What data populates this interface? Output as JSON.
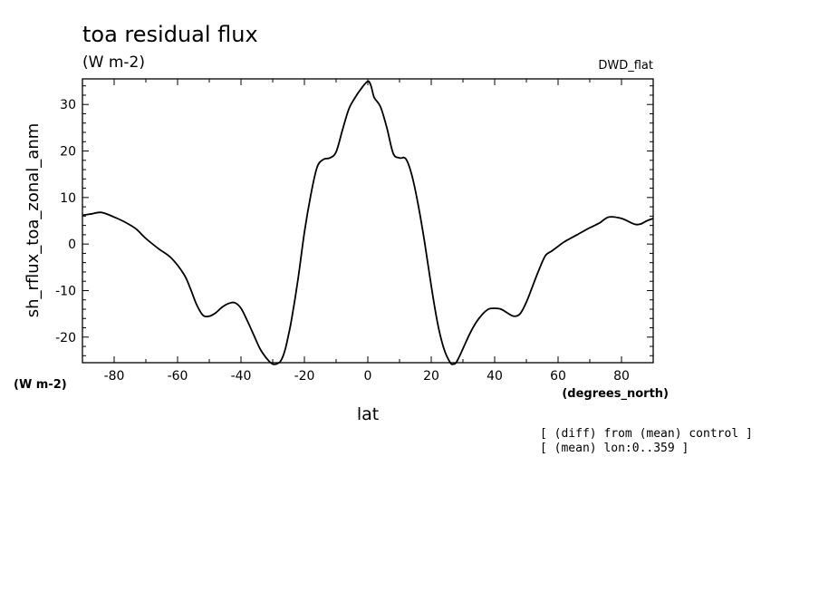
{
  "chart_data": {
    "type": "line",
    "title": "toa residual flux",
    "title_units": "(W m-2)",
    "dataset": "DWD_flat",
    "xlabel": "lat",
    "xunits": "(degrees_north)",
    "ylabel": "sh_rflux_toa_zonal_anm",
    "yunits": "(W m-2)",
    "xlim": [
      -90,
      90
    ],
    "ylim": [
      -25.5,
      35.5
    ],
    "xticks": [
      "-80",
      "-60",
      "-40",
      "-20",
      "0",
      "20",
      "40",
      "60",
      "80"
    ],
    "yticks": [
      "-20",
      "-10",
      "0",
      "10",
      "20",
      "30"
    ],
    "notes": [
      "[ (diff) from (mean) control ]",
      "[ (mean) lon:0..359 ]"
    ],
    "grid": false,
    "x": [
      -90,
      -87,
      -84,
      -80,
      -76,
      -73,
      -70,
      -66,
      -62,
      -58,
      -56,
      -54,
      -52,
      -50,
      -48,
      -46,
      -44,
      -42,
      -40,
      -38,
      -36,
      -34,
      -32,
      -30,
      -28,
      -27,
      -26,
      -25,
      -24,
      -22,
      -20,
      -18,
      -16,
      -14,
      -12,
      -10,
      -8,
      -6,
      -4,
      -2,
      0,
      1,
      2,
      4,
      6,
      8,
      10,
      12,
      14,
      16,
      18,
      20,
      22,
      24,
      26,
      27,
      28,
      30,
      32,
      34,
      36,
      38,
      40,
      42,
      44,
      46,
      48,
      50,
      52,
      54,
      56,
      58,
      60,
      62,
      66,
      70,
      73,
      76,
      80,
      84,
      86,
      88,
      90
    ],
    "y": [
      6.2,
      6.5,
      6.8,
      5.8,
      4.5,
      3.2,
      1.2,
      -1.0,
      -3.0,
      -6.5,
      -9.5,
      -13.0,
      -15.3,
      -15.5,
      -14.8,
      -13.6,
      -12.8,
      -12.6,
      -13.8,
      -16.5,
      -19.5,
      -22.5,
      -24.5,
      -25.8,
      -25.5,
      -24.5,
      -22.5,
      -19.5,
      -16.0,
      -7.5,
      2.5,
      10.5,
      16.5,
      18.2,
      18.5,
      19.8,
      24.5,
      29.0,
      31.5,
      33.5,
      35.0,
      34.0,
      31.5,
      29.5,
      25.0,
      19.5,
      18.5,
      18.3,
      14.5,
      8.0,
      0.0,
      -9.0,
      -17.0,
      -22.5,
      -25.5,
      -25.8,
      -25.3,
      -22.5,
      -19.5,
      -17.0,
      -15.2,
      -14.0,
      -13.8,
      -14.0,
      -14.8,
      -15.5,
      -15.0,
      -12.5,
      -9.0,
      -5.5,
      -2.5,
      -1.5,
      -0.5,
      0.5,
      2.0,
      3.5,
      4.5,
      5.8,
      5.5,
      4.3,
      4.3,
      5.0,
      5.5
    ]
  }
}
